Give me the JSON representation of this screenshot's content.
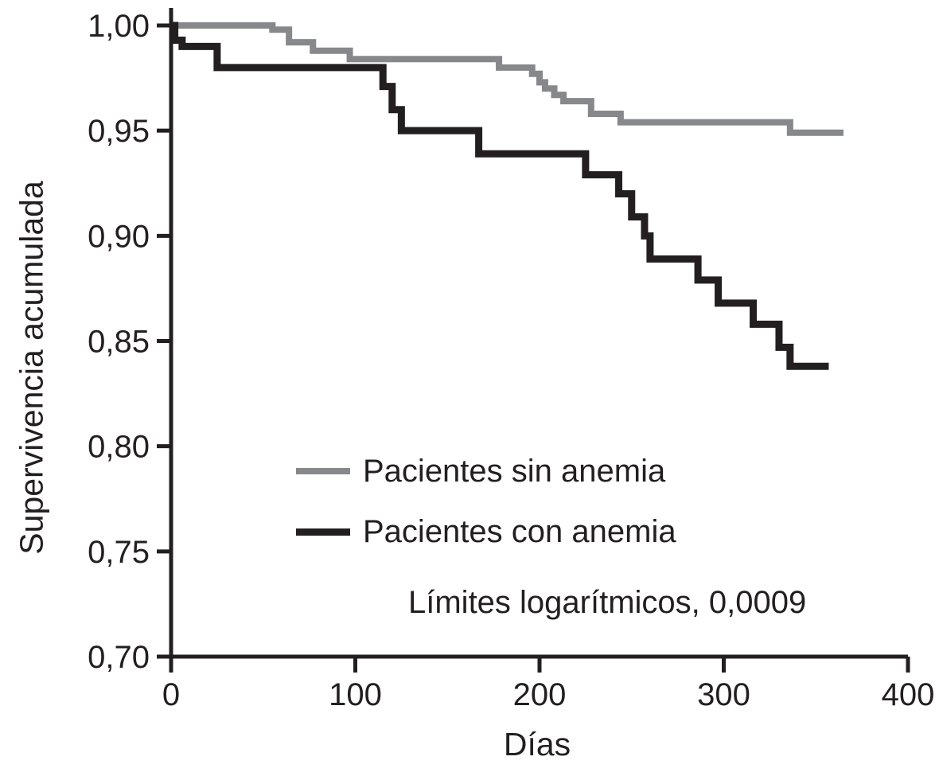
{
  "figure": {
    "y_axis_label": "Supervivencia acumulada",
    "x_axis_label": "Días",
    "annotation": "Límites logarítmicos, 0,0009",
    "colors": {
      "curve_black": "#231f20",
      "curve_gray": "#86888b",
      "axis": "#231f20",
      "text": "#231f20",
      "background": "#ffffff"
    }
  },
  "legend": {
    "items": [
      {
        "label": "Pacientes sin anemia",
        "color": "#86888b"
      },
      {
        "label": "Pacientes con anemia",
        "color": "#231f20"
      }
    ]
  },
  "chart_data": {
    "type": "line",
    "subtype": "kaplan-meier-step",
    "title": "",
    "xlabel": "Días",
    "ylabel": "Supervivencia acumulada",
    "xlim": [
      0,
      400
    ],
    "ylim": [
      0.7,
      1.0
    ],
    "grid": false,
    "legend_position": "inside-bottom-center",
    "x_ticks": [
      {
        "v": 0,
        "label": "0"
      },
      {
        "v": 100,
        "label": "100"
      },
      {
        "v": 200,
        "label": "200"
      },
      {
        "v": 300,
        "label": "300"
      },
      {
        "v": 400,
        "label": "400"
      }
    ],
    "y_ticks": [
      {
        "v": 1.0,
        "label": "1,00"
      },
      {
        "v": 0.95,
        "label": "0,95"
      },
      {
        "v": 0.9,
        "label": "0,90"
      },
      {
        "v": 0.85,
        "label": "0,85"
      },
      {
        "v": 0.8,
        "label": "0,80"
      },
      {
        "v": 0.75,
        "label": "0,75"
      },
      {
        "v": 0.7,
        "label": "0,70"
      }
    ],
    "annotation": "Límites logarítmicos, 0,0009",
    "series": [
      {
        "name": "Pacientes sin anemia",
        "color": "#86888b",
        "line_width": 8,
        "end_x": 365,
        "steps": [
          [
            0,
            1.0
          ],
          [
            55,
            0.998
          ],
          [
            64,
            0.992
          ],
          [
            77,
            0.988
          ],
          [
            97,
            0.984
          ],
          [
            178,
            0.98
          ],
          [
            196,
            0.977
          ],
          [
            200,
            0.973
          ],
          [
            203,
            0.97
          ],
          [
            208,
            0.967
          ],
          [
            213,
            0.964
          ],
          [
            228,
            0.958
          ],
          [
            244,
            0.954
          ],
          [
            336,
            0.949
          ]
        ]
      },
      {
        "name": "Pacientes con anemia",
        "color": "#231f20",
        "line_width": 9,
        "end_x": 357,
        "steps": [
          [
            0,
            1.0
          ],
          [
            2,
            0.993
          ],
          [
            6,
            0.99
          ],
          [
            25,
            0.98
          ],
          [
            115,
            0.971
          ],
          [
            120,
            0.96
          ],
          [
            125,
            0.95
          ],
          [
            167,
            0.939
          ],
          [
            225,
            0.929
          ],
          [
            243,
            0.92
          ],
          [
            250,
            0.909
          ],
          [
            257,
            0.9
          ],
          [
            260,
            0.889
          ],
          [
            286,
            0.879
          ],
          [
            297,
            0.868
          ],
          [
            316,
            0.858
          ],
          [
            330,
            0.847
          ],
          [
            336,
            0.838
          ]
        ]
      }
    ]
  }
}
